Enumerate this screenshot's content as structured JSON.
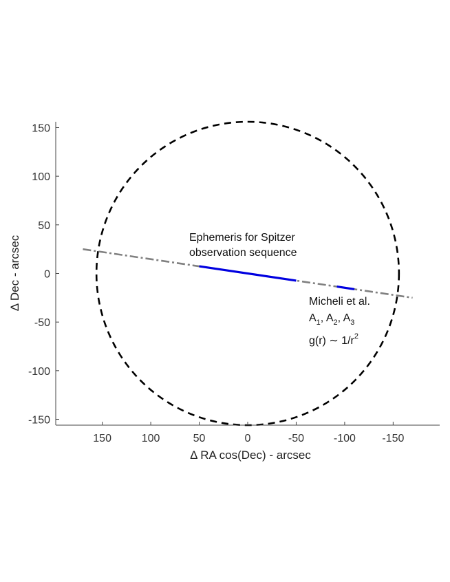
{
  "chart_data": {
    "type": "line",
    "title": "",
    "xlabel": "Δ RA cos(Dec) - arcsec",
    "ylabel": "Δ Dec - arcsec",
    "xlim": [
      198,
      -198
    ],
    "xaxis_reversed": true,
    "ylim": [
      -156,
      156
    ],
    "xticks": [
      150,
      100,
      50,
      0,
      -50,
      -100,
      -150
    ],
    "yticks": [
      150,
      100,
      50,
      0,
      -50,
      -100,
      -150
    ],
    "grid": false,
    "series": [
      {
        "style": "dashed-circle",
        "color": "#000000",
        "center": [
          0,
          0
        ],
        "radius": 156
      },
      {
        "style": "dash-dot",
        "color": "#808080",
        "x": [
          170,
          -170
        ],
        "y": [
          25,
          -25
        ]
      },
      {
        "style": "solid",
        "color": "#0000e0",
        "x": [
          50,
          -50
        ],
        "y": [
          7.4,
          -7.4
        ]
      },
      {
        "style": "solid",
        "color": "#0000e0",
        "x": [
          -92,
          -110
        ],
        "y": [
          -13.5,
          -16.2
        ]
      }
    ],
    "annotations": {
      "ephemeris_line1": "Ephemeris for Spitzer",
      "ephemeris_line2": "observation sequence",
      "micheli_line1": "Micheli et al.",
      "micheli_A": "A",
      "micheli_sub1": "1",
      "micheli_sub2": "2",
      "micheli_sub3": "3",
      "micheli_sep": ", ",
      "micheli_g": "g(r) ∼ 1/r",
      "micheli_exp": "2"
    }
  }
}
